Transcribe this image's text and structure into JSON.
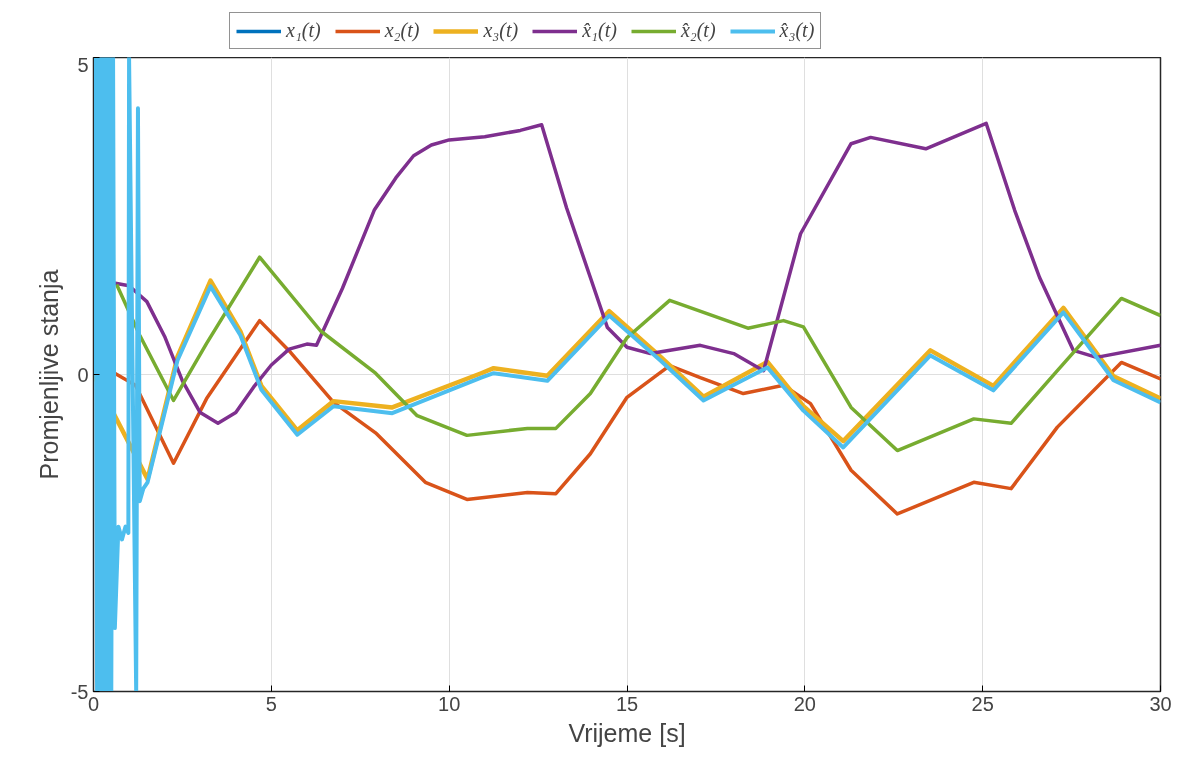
{
  "chart_data": {
    "type": "line",
    "xlabel": "Vrijeme [s]",
    "ylabel": "Promjenljive stanja",
    "xlim": [
      0,
      30
    ],
    "ylim": [
      -5,
      5
    ],
    "xticks": [
      0,
      5,
      10,
      15,
      20,
      25,
      30
    ],
    "yticks": [
      -5,
      0,
      5
    ],
    "grid": true,
    "legend": "top",
    "line_style": "solid",
    "marker": "none",
    "series": [
      {
        "name": "x₁(t)",
        "color": "#0072bd",
        "values": [
          null
        ]
      },
      {
        "name": "x₂(t)",
        "color": "#d95319",
        "x": [
          0,
          0.5,
          1.18,
          2.25,
          3.18,
          4.67,
          5.54,
          6.75,
          7.93,
          9.33,
          10.5,
          12.2,
          13.0,
          13.97,
          15.0,
          16.2,
          17.06,
          18.27,
          19.4,
          20.16,
          21.3,
          22.6,
          24.75,
          25.8,
          27.1,
          28.9,
          30
        ],
        "values": [
          0,
          0.05,
          -0.17,
          -1.4,
          -0.38,
          0.85,
          0.35,
          -0.44,
          -0.92,
          -1.7,
          -1.97,
          -1.86,
          -1.88,
          -1.25,
          -0.36,
          0.14,
          -0.05,
          -0.3,
          -0.17,
          -0.46,
          -1.51,
          -2.2,
          -1.7,
          -1.8,
          -0.83,
          0.19,
          -0.07
        ]
      },
      {
        "name": "x₃(t)",
        "color": "#edb120",
        "x": [
          0,
          1.52,
          2.36,
          3.29,
          4.13,
          4.72,
          5.73,
          6.75,
          8.4,
          10.9,
          11.25,
          12.76,
          14.5,
          15.94,
          17.15,
          18.95,
          19.96,
          21.08,
          23.53,
          25.3,
          27.27,
          28.68,
          30
        ],
        "values": [
          0,
          -1.65,
          0.28,
          1.48,
          0.68,
          -0.18,
          -0.88,
          -0.42,
          -0.52,
          0.02,
          0.1,
          -0.02,
          1.0,
          0.28,
          -0.35,
          0.2,
          -0.5,
          -1.05,
          0.38,
          -0.18,
          1.05,
          -0.03,
          -0.38
        ]
      },
      {
        "name": "x̂₁(t)",
        "color": "#7e2f8e",
        "x": [
          0.5,
          1.0,
          1.5,
          2.0,
          2.5,
          3.0,
          3.5,
          4.0,
          4.5,
          5.0,
          5.5,
          6.0,
          6.27,
          7.0,
          7.9,
          8.5,
          9.0,
          9.5,
          10.0,
          11.0,
          12.0,
          12.6,
          13.3,
          13.97,
          14.45,
          15.0,
          15.66,
          17.06,
          18.0,
          18.84,
          19.88,
          21.3,
          21.85,
          23.4,
          25.1,
          25.9,
          26.6,
          27.55,
          28.2,
          30
        ],
        "values": [
          1.45,
          1.4,
          1.15,
          0.6,
          -0.1,
          -0.6,
          -0.77,
          -0.6,
          -0.2,
          0.15,
          0.4,
          0.48,
          0.46,
          1.36,
          2.6,
          3.1,
          3.45,
          3.62,
          3.7,
          3.75,
          3.85,
          3.94,
          2.63,
          1.53,
          0.74,
          0.43,
          0.33,
          0.46,
          0.33,
          0.06,
          2.22,
          3.64,
          3.74,
          3.56,
          3.96,
          2.59,
          1.53,
          0.38,
          0.27,
          0.46
        ]
      },
      {
        "name": "x̂₂(t)",
        "color": "#77ac30",
        "x": [
          0.65,
          1.3,
          2.25,
          3.18,
          4.67,
          6.38,
          7.93,
          9.1,
          10.5,
          12.2,
          13.0,
          13.97,
          15.0,
          16.2,
          18.4,
          19.4,
          19.96,
          21.3,
          22.6,
          24.75,
          25.8,
          27.1,
          28.9,
          30
        ],
        "values": [
          1.42,
          0.62,
          -0.41,
          0.49,
          1.85,
          0.69,
          0.02,
          -0.65,
          -0.96,
          -0.85,
          -0.85,
          -0.3,
          0.58,
          1.17,
          0.73,
          0.85,
          0.75,
          -0.52,
          -1.2,
          -0.7,
          -0.77,
          0.06,
          1.2,
          0.93
        ]
      },
      {
        "name": "x̂₃(t)",
        "color": "#4dbeee",
        "x": [
          0,
          0.05,
          0.1,
          0.15,
          0.2,
          0.25,
          0.3,
          0.35,
          0.4,
          0.45,
          0.5,
          0.55,
          0.6,
          0.7,
          0.8,
          0.9,
          0.98,
          1.0,
          1.2,
          1.25,
          1.3,
          1.4,
          1.52,
          2.36,
          3.29,
          4.13,
          4.72,
          5.73,
          6.75,
          8.4,
          10.9,
          11.25,
          12.76,
          14.5,
          15.94,
          17.15,
          18.95,
          19.96,
          21.08,
          23.53,
          25.3,
          27.27,
          28.68,
          30
        ],
        "values": [
          0,
          5,
          -5,
          5,
          -5,
          5,
          -5,
          5,
          -5,
          5,
          -5,
          5,
          -4.0,
          -2.4,
          -2.6,
          -2.4,
          -2.5,
          5,
          -5,
          4.2,
          -2.0,
          -1.8,
          -1.7,
          0.22,
          1.39,
          0.62,
          -0.24,
          -0.95,
          -0.5,
          -0.61,
          -0.05,
          0.02,
          -0.1,
          0.93,
          0.22,
          -0.41,
          0.11,
          -0.57,
          -1.15,
          0.3,
          -0.25,
          0.98,
          -0.09,
          -0.44
        ]
      }
    ]
  }
}
